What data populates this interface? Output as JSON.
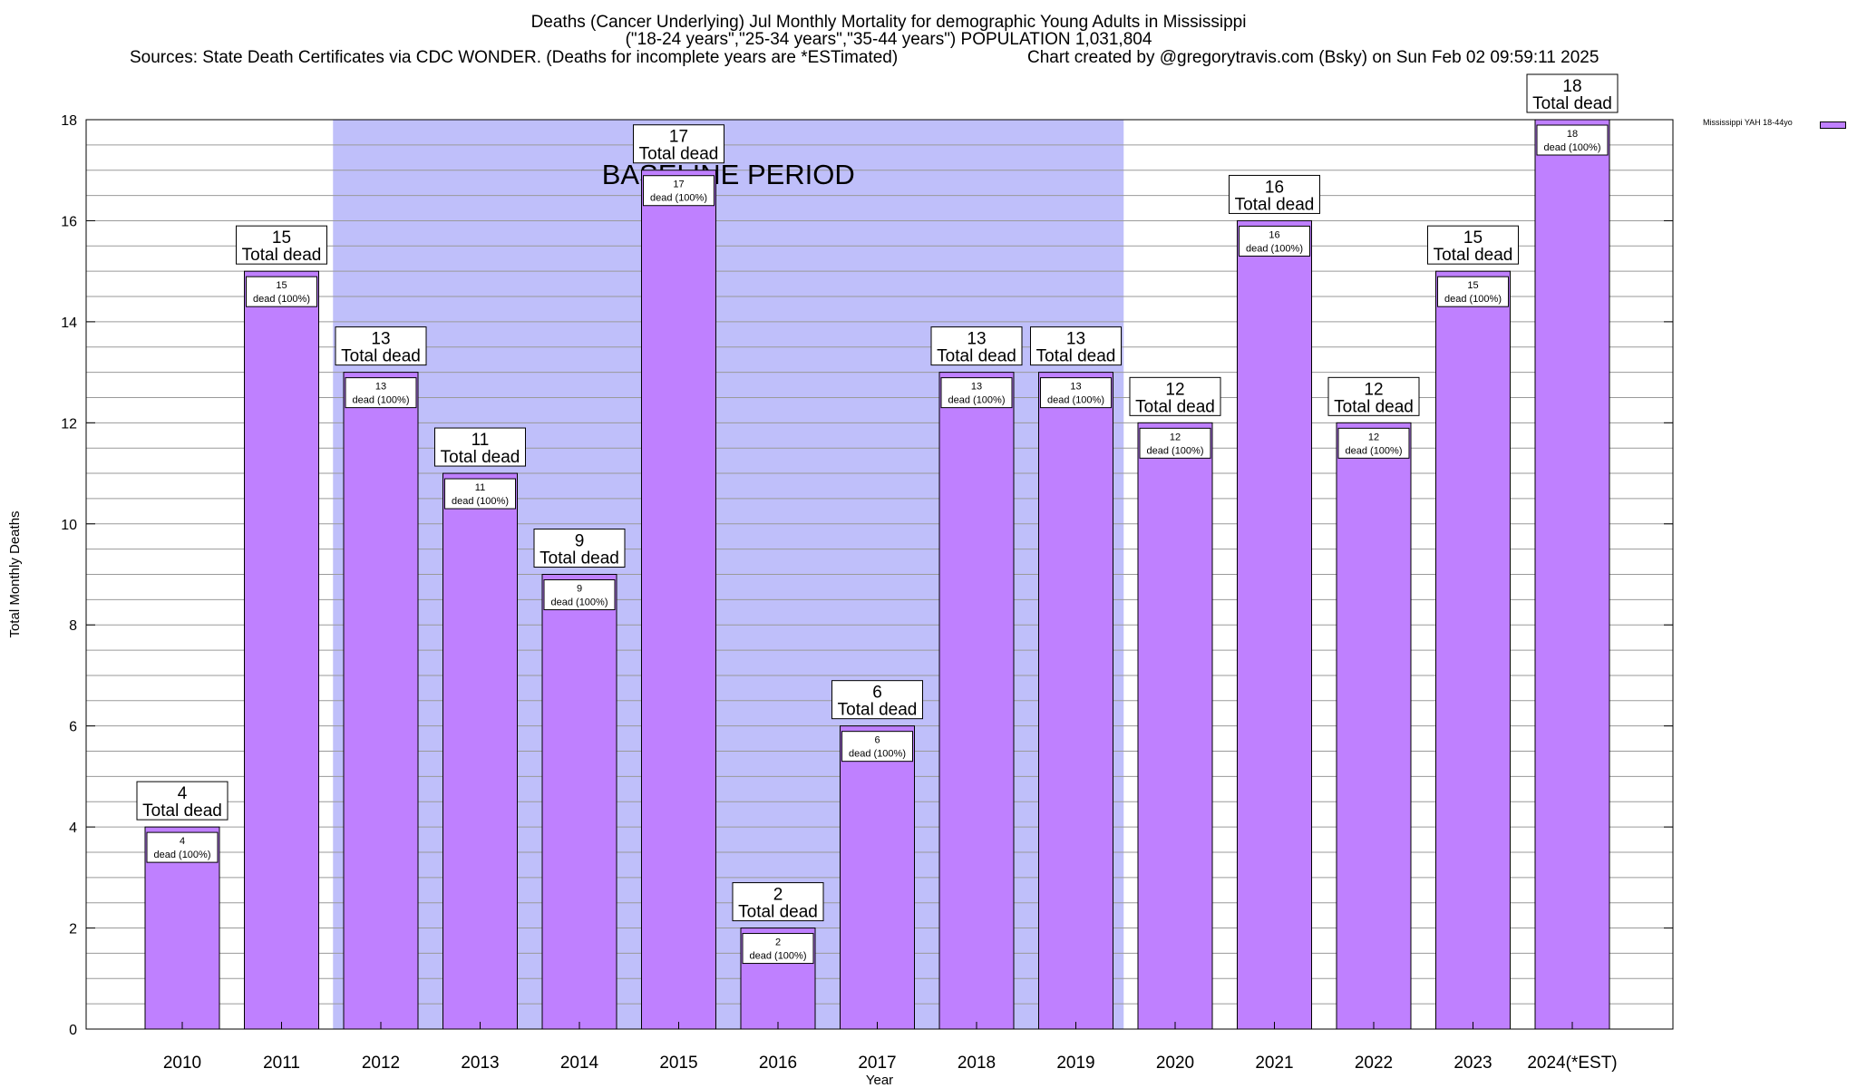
{
  "title": {
    "line1": "Deaths (Cancer Underlying) Jul Monthly Mortality for demographic Young Adults in Mississippi",
    "line2": "(\"18-24 years\",\"25-34 years\",\"35-44 years\") POPULATION 1,031,804",
    "sources": "Sources: State Death Certificates via CDC WONDER. (Deaths for incomplete years are *ESTimated)",
    "credit": "Chart created by @gregorytravis.com (Bsky) on Sun Feb 02 09:59:11 2025"
  },
  "legend": {
    "label": "Mississippi YAH 18-44yo"
  },
  "colors": {
    "bar": "#bf80ff",
    "baseline_band": "#bfbffa"
  },
  "chart_data": {
    "type": "bar",
    "xlabel": "Year",
    "ylabel": "Total Monthly Deaths",
    "ylim": [
      0,
      18
    ],
    "yticks": [
      0,
      2,
      4,
      6,
      8,
      10,
      12,
      14,
      16,
      18
    ],
    "grid": true,
    "legend_position": "top-right",
    "categories": [
      "2010",
      "2011",
      "2012",
      "2013",
      "2014",
      "2015",
      "2016",
      "2017",
      "2018",
      "2019",
      "2020",
      "2021",
      "2022",
      "2023",
      "2024(*EST)"
    ],
    "series": [
      {
        "name": "Mississippi YAH 18-44yo",
        "values": [
          4,
          15,
          13,
          11,
          9,
          17,
          2,
          6,
          13,
          13,
          12,
          16,
          12,
          15,
          18
        ]
      }
    ],
    "top_label_suffix": "Total dead",
    "inner_label_suffix": "dead (100%)",
    "baseline_period": {
      "label": "BASELINE PERIOD",
      "from": "2012",
      "to": "2019"
    }
  }
}
